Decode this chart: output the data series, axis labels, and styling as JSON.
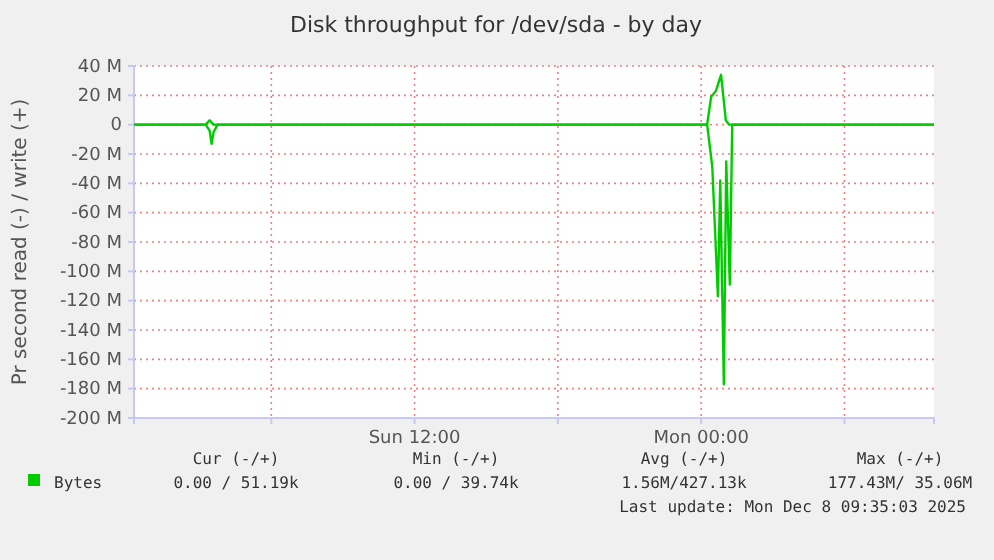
{
  "chart_data": {
    "type": "line",
    "title": "Disk throughput for /dev/sda - by day",
    "ylabel": "Pr second read (-) / write (+)",
    "xlim": [
      "2025-12-07T00:15",
      "2025-12-08T09:45"
    ],
    "xticks": [
      {
        "value": "2025-12-07T06:00",
        "label": null
      },
      {
        "value": "2025-12-07T12:00",
        "label": "Sun 12:00"
      },
      {
        "value": "2025-12-07T18:00",
        "label": null
      },
      {
        "value": "2025-12-08T00:00",
        "label": "Mon 00:00"
      },
      {
        "value": "2025-12-08T06:00",
        "label": null
      }
    ],
    "ylim": [
      -200000000,
      40000000
    ],
    "yticks": [
      {
        "value": 40000000,
        "label": "40 M"
      },
      {
        "value": 20000000,
        "label": "20 M"
      },
      0,
      {
        "value": -20000000,
        "label": "-20 M"
      },
      {
        "value": -40000000,
        "label": "-40 M"
      },
      {
        "value": -60000000,
        "label": "-60 M"
      },
      {
        "value": -80000000,
        "label": "-80 M"
      },
      {
        "value": -100000000,
        "label": "-100 M"
      },
      {
        "value": -120000000,
        "label": "-120 M"
      },
      {
        "value": -140000000,
        "label": "-140 M"
      },
      {
        "value": -160000000,
        "label": "-160 M"
      },
      {
        "value": -180000000,
        "label": "-180 M"
      },
      {
        "value": -200000000,
        "label": "-200 M"
      }
    ],
    "grid": true,
    "legend": "bottom",
    "series": [
      {
        "name": "Bytes",
        "color": "#00cc00",
        "x": [
          "2025-12-07T00:15",
          "2025-12-07T03:15",
          "2025-12-07T03:25",
          "2025-12-07T03:35",
          "2025-12-08T00:15",
          "2025-12-08T00:25",
          "2025-12-08T00:37",
          "2025-12-08T00:50",
          "2025-12-08T01:02",
          "2025-12-08T01:10",
          "2025-12-08T09:45"
        ],
        "values": [
          0,
          0,
          3000000,
          0,
          0,
          19000000,
          23000000,
          34000000,
          3000000,
          0,
          0
        ]
      },
      {
        "color": "#00cc00",
        "x": [
          "2025-12-07T00:15",
          "2025-12-07T03:15",
          "2025-12-07T03:25",
          "2025-12-07T03:30",
          "2025-12-07T03:35",
          "2025-12-07T03:45",
          "2025-12-08T00:15",
          "2025-12-08T00:28",
          "2025-12-08T00:42",
          "2025-12-08T00:48",
          "2025-12-08T00:57",
          "2025-12-08T01:03",
          "2025-12-08T01:12",
          "2025-12-08T01:18",
          "2025-12-08T09:45"
        ],
        "values": [
          0,
          0,
          -4000000,
          -13000000,
          -5000000,
          0,
          0,
          -29000000,
          -117000000,
          -38000000,
          -177000000,
          -25000000,
          -109000000,
          0,
          0
        ]
      }
    ],
    "annotations": [
      "Cur (-/+)",
      "Min (-/+)",
      "Avg (-/+)",
      "Max (-/+)",
      "0.00 / 51.19k",
      "0.00 / 39.74k",
      "1.56M/427.13k",
      "177.43M/ 35.06M",
      "Last update: Mon Dec  8 09:35:03 2025"
    ]
  }
}
